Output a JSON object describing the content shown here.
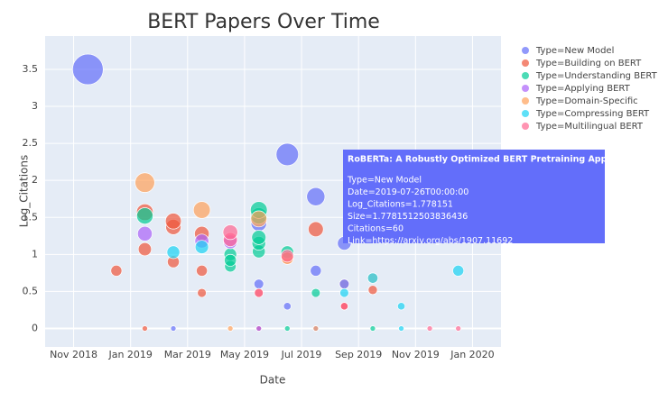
{
  "chart_data": {
    "type": "scatter",
    "title": "BERT Papers Over Time",
    "x_label": "Date",
    "y_label": "Log_Citations",
    "xlim": [
      "2018-10",
      "2020-02"
    ],
    "xticks": [
      {
        "value": "2018-11",
        "label": "Nov 2018"
      },
      {
        "value": "2019-01",
        "label": "Jan 2019"
      },
      {
        "value": "2019-03",
        "label": "Mar 2019"
      },
      {
        "value": "2019-05",
        "label": "May 2019"
      },
      {
        "value": "2019-07",
        "label": "Jul 2019"
      },
      {
        "value": "2019-09",
        "label": "Sep 2019"
      },
      {
        "value": "2019-11",
        "label": "Nov 2019"
      },
      {
        "value": "2020-01",
        "label": "Jan 2020"
      }
    ],
    "ylim": [
      -0.25,
      3.95
    ],
    "yticks": [
      0,
      0.5,
      1,
      1.5,
      2,
      2.5,
      3,
      3.5
    ],
    "grid": true,
    "legend": "right",
    "series": [
      {
        "name": "Type=New Model",
        "color": "#636efa",
        "x": [
          "2018-11",
          "2019-06",
          "2019-07",
          "2019-05",
          "2019-08",
          "2019-07",
          "2019-05",
          "2019-02",
          "2019-07",
          "2019-06"
        ],
        "values": [
          3.5,
          2.35,
          1.78,
          1.42,
          1.15,
          0.78,
          0.6,
          0,
          0,
          0.3
        ]
      },
      {
        "name": "Type=Building on BERT",
        "color": "#EF553B",
        "x": [
          "2018-12",
          "2019-01",
          "2019-01",
          "2019-02",
          "2019-02",
          "2019-03",
          "2019-02",
          "2019-03",
          "2019-03",
          "2019-06",
          "2019-07",
          "2019-05",
          "2019-09",
          "2019-01",
          "2019-05",
          "2019-08",
          "2019-08"
        ],
        "values": [
          0.78,
          1.07,
          1.57,
          1.37,
          1.45,
          1.28,
          0.9,
          0.48,
          0.78,
          0.95,
          1.34,
          0.48,
          0.52,
          0,
          0,
          0.3,
          0.3
        ]
      },
      {
        "name": "Type=Understanding BERT",
        "color": "#00cc96",
        "x": [
          "2019-01",
          "2019-04",
          "2019-04",
          "2019-04",
          "2019-05",
          "2019-05",
          "2019-05",
          "2019-05",
          "2019-05",
          "2019-06",
          "2019-07",
          "2019-08",
          "2019-09",
          "2019-06"
        ],
        "values": [
          1.52,
          0.84,
          1.0,
          0.92,
          1.04,
          1.52,
          1.15,
          1.23,
          1.6,
          1.03,
          0.48,
          0.6,
          0,
          0
        ]
      },
      {
        "name": "Type=Applying BERT",
        "color": "#ab63fa",
        "x": [
          "2019-01",
          "2019-03",
          "2019-04",
          "2019-08",
          "2019-05"
        ],
        "values": [
          1.28,
          1.18,
          1.17,
          0.6,
          0
        ]
      },
      {
        "name": "Type=Domain-Specific",
        "color": "#FFA15A",
        "x": [
          "2019-01",
          "2019-03",
          "2019-05",
          "2019-06",
          "2019-09",
          "2019-04",
          "2019-07"
        ],
        "values": [
          1.97,
          1.6,
          1.48,
          0.95,
          0.68,
          0,
          0
        ]
      },
      {
        "name": "Type=Compressing BERT",
        "color": "#19d3f3",
        "x": [
          "2019-02",
          "2019-03",
          "2019-12",
          "2019-09",
          "2019-08",
          "2019-10",
          "2019-10"
        ],
        "values": [
          1.03,
          1.1,
          0.78,
          0.68,
          0.48,
          0.3,
          0
        ]
      },
      {
        "name": "Type=Multilingual BERT",
        "color": "#FF6692",
        "x": [
          "2019-04",
          "2019-04",
          "2019-06",
          "2019-05",
          "2019-08",
          "2019-12",
          "2019-11"
        ],
        "values": [
          1.2,
          1.3,
          0.98,
          0.48,
          0.3,
          0,
          0
        ]
      }
    ],
    "tooltip": {
      "title": "RoBERTa: A Robustly Optimized BERT Pretraining Approach",
      "lines": [
        "Type=New Model",
        "Date=2019-07-26T00:00:00",
        "Log_Citations=1.778151",
        "Size=1.7781512503836436",
        "Citations=60",
        "Link=https://arxiv.org/abs/1907.11692"
      ]
    }
  }
}
